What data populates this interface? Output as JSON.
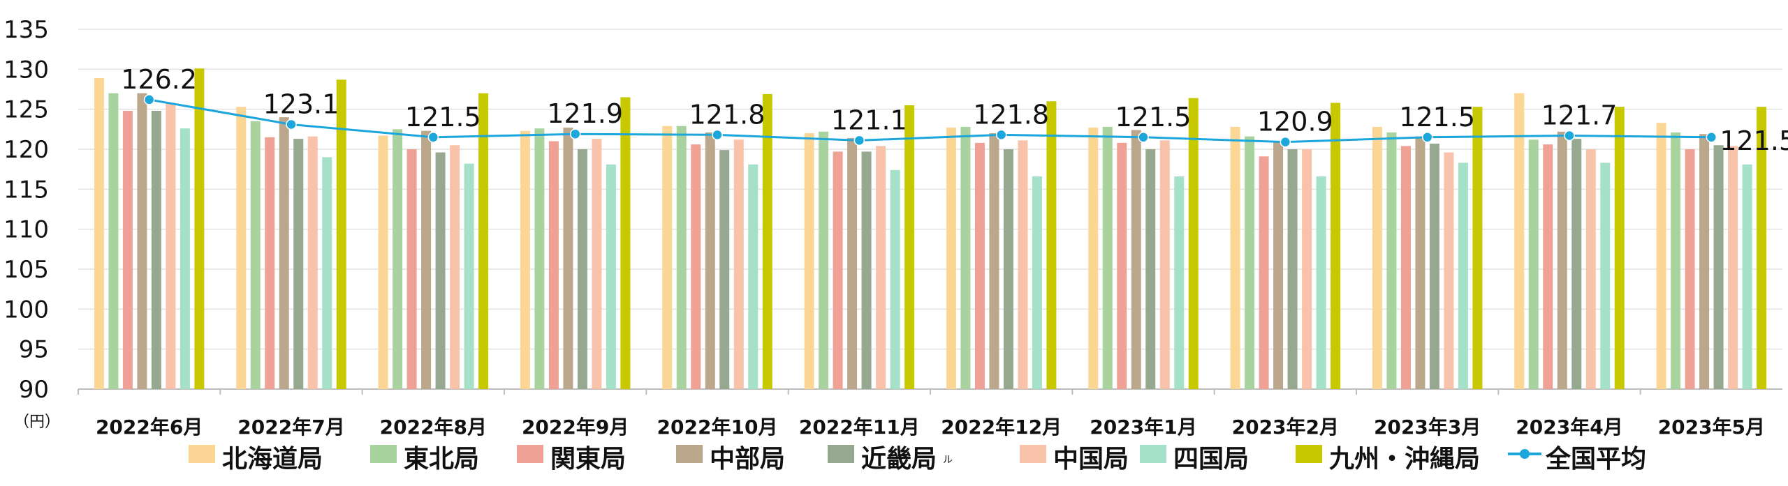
{
  "chart_data": {
    "type": "bar",
    "title": "",
    "unit_label": "（円）",
    "ylim": [
      90,
      135
    ],
    "yticks": [
      135,
      130,
      125,
      120,
      115,
      110,
      105,
      100,
      95,
      90
    ],
    "grid": true,
    "legend_position": "bottom",
    "categories": [
      "2022年6月",
      "2022年7月",
      "2022年8月",
      "2022年9月",
      "2022年10月",
      "2022年11月",
      "2022年12月",
      "2023年1月",
      "2023年2月",
      "2023年3月",
      "2023年4月",
      "2023年5月"
    ],
    "series": [
      {
        "name": "北海道局",
        "color": "#fcd695",
        "values": [
          128.9,
          125.3,
          121.7,
          122.3,
          122.9,
          122.0,
          122.7,
          122.7,
          122.8,
          122.8,
          127.0,
          123.3
        ]
      },
      {
        "name": "東北局",
        "color": "#a9d39e",
        "values": [
          127.0,
          123.5,
          122.5,
          122.6,
          122.9,
          122.2,
          122.8,
          122.8,
          121.6,
          122.1,
          121.2,
          122.1
        ]
      },
      {
        "name": "関東局",
        "color": "#f0a195",
        "values": [
          124.8,
          121.5,
          120.0,
          121.0,
          120.6,
          119.7,
          120.8,
          120.8,
          119.1,
          120.4,
          120.6,
          120.0
        ]
      },
      {
        "name": "中部局",
        "color": "#bba78c",
        "values": [
          127.0,
          124.0,
          122.3,
          122.7,
          122.1,
          121.4,
          122.0,
          122.4,
          120.9,
          121.6,
          122.2,
          121.9
        ]
      },
      {
        "name": "近畿局",
        "color": "#97a891",
        "values": [
          124.8,
          121.3,
          119.6,
          120.0,
          119.9,
          119.7,
          120.0,
          120.0,
          120.0,
          120.7,
          121.3,
          120.5
        ]
      },
      {
        "name": "中国局",
        "color": "#f9c2aa",
        "values": [
          125.8,
          121.6,
          120.5,
          121.3,
          121.2,
          120.4,
          121.1,
          121.1,
          120.0,
          119.6,
          120.0,
          120.4
        ]
      },
      {
        "name": "四国局",
        "color": "#a5e0c9",
        "values": [
          122.6,
          119.0,
          118.2,
          118.1,
          118.1,
          117.4,
          116.6,
          116.6,
          116.6,
          118.3,
          118.3,
          118.1
        ]
      },
      {
        "name": "九州・沖縄局",
        "color": "#c8c800",
        "values": [
          130.1,
          128.7,
          127.0,
          126.5,
          126.9,
          125.5,
          126.0,
          126.4,
          125.8,
          125.3,
          125.3,
          125.3
        ]
      }
    ],
    "line_series": {
      "name": "全国平均",
      "color": "#1ba6dc",
      "values": [
        126.2,
        123.1,
        121.5,
        121.9,
        121.8,
        121.1,
        121.8,
        121.5,
        120.9,
        121.5,
        121.7,
        121.5
      ],
      "labels": [
        "126.2",
        "123.1",
        "121.5",
        "121.9",
        "121.8",
        "121.1",
        "121.8",
        "121.5",
        "120.9",
        "121.5",
        "121.7",
        "121.5"
      ]
    },
    "stray_text": "ル"
  }
}
